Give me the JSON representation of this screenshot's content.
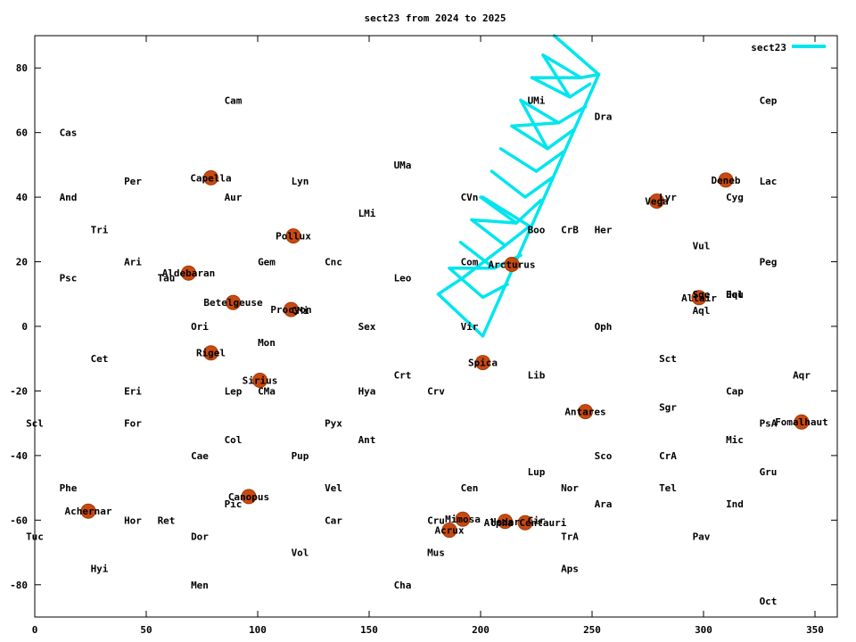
{
  "chart_data": {
    "type": "line",
    "title": "sect23 from 2024 to 2025",
    "xlabel": "",
    "ylabel": "",
    "xlim": [
      0,
      360
    ],
    "ylim": [
      -90,
      90
    ],
    "grid": false,
    "legend": "top-right",
    "xticks": [
      0,
      50,
      100,
      150,
      200,
      250,
      300,
      350
    ],
    "yticks": [
      -80,
      -60,
      -40,
      -20,
      0,
      20,
      40,
      60,
      80
    ],
    "series": [
      {
        "name": "sect23",
        "color": "#00e5ee",
        "segments": [
          [
            [
              181,
              10
            ],
            [
              201,
              -3
            ],
            [
              253,
              78
            ],
            [
              233,
              90
            ]
          ],
          [
            [
              181,
              10
            ],
            [
              192,
              15
            ]
          ],
          [
            [
              186,
              18
            ],
            [
              201,
              9
            ],
            [
              212,
              13
            ]
          ],
          [
            [
              191,
              26
            ],
            [
              206,
              18
            ],
            [
              218,
              22
            ]
          ],
          [
            [
              196,
              33
            ],
            [
              211,
              25
            ],
            [
              222,
              31
            ]
          ],
          [
            [
              200,
              40
            ],
            [
              216,
              32
            ],
            [
              227,
              39
            ]
          ],
          [
            [
              205,
              48
            ],
            [
              220,
              40
            ],
            [
              232,
              46
            ]
          ],
          [
            [
              209,
              55
            ],
            [
              225,
              48
            ],
            [
              237,
              54
            ]
          ],
          [
            [
              214,
              62
            ],
            [
              230,
              55
            ],
            [
              242,
              61
            ]
          ],
          [
            [
              218,
              70
            ],
            [
              235,
              63
            ],
            [
              247,
              68
            ]
          ],
          [
            [
              223,
              77
            ],
            [
              240,
              71
            ],
            [
              249,
              75
            ]
          ],
          [
            [
              228,
              84
            ],
            [
              245,
              77
            ],
            [
              253,
              78
            ]
          ],
          [
            [
              192,
              15
            ],
            [
              211,
              25
            ]
          ],
          [
            [
              186,
              18
            ],
            [
              206,
              18
            ]
          ],
          [
            [
              201,
              40
            ],
            [
              222,
              31
            ]
          ],
          [
            [
              196,
              33
            ],
            [
              216,
              32
            ]
          ],
          [
            [
              214,
              62
            ],
            [
              235,
              63
            ]
          ],
          [
            [
              218,
              70
            ],
            [
              230,
              55
            ]
          ],
          [
            [
              223,
              77
            ],
            [
              245,
              77
            ]
          ],
          [
            [
              228,
              84
            ],
            [
              240,
              71
            ]
          ]
        ]
      }
    ],
    "stars": [
      {
        "name": "Capella",
        "x": 79,
        "y": 46
      },
      {
        "name": "Pollux",
        "x": 116,
        "y": 28
      },
      {
        "name": "Aldebaran",
        "x": 69,
        "y": 16.5
      },
      {
        "name": "Betelgeuse",
        "x": 89,
        "y": 7.4
      },
      {
        "name": "Procyon",
        "x": 115,
        "y": 5.2
      },
      {
        "name": "Rigel",
        "x": 79,
        "y": -8.2
      },
      {
        "name": "Sirius",
        "x": 101,
        "y": -16.7
      },
      {
        "name": "Canopus",
        "x": 96,
        "y": -52.7
      },
      {
        "name": "Achernar",
        "x": 24,
        "y": -57.2
      },
      {
        "name": "Arcturus",
        "x": 214,
        "y": 19.2
      },
      {
        "name": "Spica",
        "x": 201,
        "y": -11.2
      },
      {
        "name": "Mimosa",
        "x": 192,
        "y": -59.7
      },
      {
        "name": "Acrux",
        "x": 186,
        "y": -63.1
      },
      {
        "name": "Hadar",
        "x": 211,
        "y": -60.4
      },
      {
        "name": "Alpha Centauri",
        "x": 220,
        "y": -60.8
      },
      {
        "name": "Antares",
        "x": 247,
        "y": -26.4
      },
      {
        "name": "Vega",
        "x": 279,
        "y": 38.8
      },
      {
        "name": "Deneb",
        "x": 310,
        "y": 45.3
      },
      {
        "name": "Altair",
        "x": 298,
        "y": 8.9
      },
      {
        "name": "Fomalhaut",
        "x": 344,
        "y": -29.6
      }
    ],
    "constellations": [
      {
        "name": "Cam",
        "x": 89,
        "y": 70
      },
      {
        "name": "Cas",
        "x": 15,
        "y": 60
      },
      {
        "name": "UMa",
        "x": 165,
        "y": 50
      },
      {
        "name": "UMi",
        "x": 225,
        "y": 70
      },
      {
        "name": "Dra",
        "x": 255,
        "y": 65
      },
      {
        "name": "Cep",
        "x": 329,
        "y": 70
      },
      {
        "name": "Per",
        "x": 44,
        "y": 45
      },
      {
        "name": "Lyn",
        "x": 119,
        "y": 45
      },
      {
        "name": "Lac",
        "x": 329,
        "y": 45
      },
      {
        "name": "And",
        "x": 15,
        "y": 40
      },
      {
        "name": "Aur",
        "x": 89,
        "y": 40
      },
      {
        "name": "CVn",
        "x": 195,
        "y": 40
      },
      {
        "name": "Lyr",
        "x": 284,
        "y": 40
      },
      {
        "name": "Cyg",
        "x": 314,
        "y": 40
      },
      {
        "name": "LMi",
        "x": 149,
        "y": 35
      },
      {
        "name": "Tri",
        "x": 29,
        "y": 30
      },
      {
        "name": "Boo",
        "x": 225,
        "y": 30
      },
      {
        "name": "CrB",
        "x": 240,
        "y": 30
      },
      {
        "name": "Her",
        "x": 255,
        "y": 30
      },
      {
        "name": "Vul",
        "x": 299,
        "y": 25
      },
      {
        "name": "Ari",
        "x": 44,
        "y": 20
      },
      {
        "name": "Gem",
        "x": 104,
        "y": 20
      },
      {
        "name": "Cnc",
        "x": 134,
        "y": 20
      },
      {
        "name": "Com",
        "x": 195,
        "y": 20
      },
      {
        "name": "Peg",
        "x": 329,
        "y": 20
      },
      {
        "name": "Psc",
        "x": 15,
        "y": 15
      },
      {
        "name": "Tau",
        "x": 59,
        "y": 15
      },
      {
        "name": "Leo",
        "x": 165,
        "y": 15
      },
      {
        "name": "Sge",
        "x": 299,
        "y": 10
      },
      {
        "name": "Equ",
        "x": 314,
        "y": 10
      },
      {
        "name": "Del",
        "x": 314,
        "y": 10
      },
      {
        "name": "CMi",
        "x": 119,
        "y": 5
      },
      {
        "name": "Aql",
        "x": 299,
        "y": 5
      },
      {
        "name": "Ori",
        "x": 74,
        "y": 0
      },
      {
        "name": "Sex",
        "x": 149,
        "y": 0
      },
      {
        "name": "Vir",
        "x": 195,
        "y": 0
      },
      {
        "name": "Oph",
        "x": 255,
        "y": 0
      },
      {
        "name": "Mon",
        "x": 104,
        "y": -5
      },
      {
        "name": "Cet",
        "x": 29,
        "y": -10
      },
      {
        "name": "Sct",
        "x": 284,
        "y": -10
      },
      {
        "name": "Crt",
        "x": 165,
        "y": -15
      },
      {
        "name": "Lib",
        "x": 225,
        "y": -15
      },
      {
        "name": "Aqr",
        "x": 344,
        "y": -15
      },
      {
        "name": "Eri",
        "x": 44,
        "y": -20
      },
      {
        "name": "Lep",
        "x": 89,
        "y": -20
      },
      {
        "name": "CMa",
        "x": 104,
        "y": -20
      },
      {
        "name": "Hya",
        "x": 149,
        "y": -20
      },
      {
        "name": "Crv",
        "x": 180,
        "y": -20
      },
      {
        "name": "Cap",
        "x": 314,
        "y": -20
      },
      {
        "name": "Sgr",
        "x": 284,
        "y": -25
      },
      {
        "name": "Scl",
        "x": 0,
        "y": -30
      },
      {
        "name": "For",
        "x": 44,
        "y": -30
      },
      {
        "name": "Pyx",
        "x": 134,
        "y": -30
      },
      {
        "name": "PsA",
        "x": 329,
        "y": -30
      },
      {
        "name": "Col",
        "x": 89,
        "y": -35
      },
      {
        "name": "Ant",
        "x": 149,
        "y": -35
      },
      {
        "name": "Mic",
        "x": 314,
        "y": -35
      },
      {
        "name": "Cae",
        "x": 74,
        "y": -40
      },
      {
        "name": "Pup",
        "x": 119,
        "y": -40
      },
      {
        "name": "Sco",
        "x": 255,
        "y": -40
      },
      {
        "name": "CrA",
        "x": 284,
        "y": -40
      },
      {
        "name": "Lup",
        "x": 225,
        "y": -45
      },
      {
        "name": "Gru",
        "x": 329,
        "y": -45
      },
      {
        "name": "Phe",
        "x": 15,
        "y": -50
      },
      {
        "name": "Vel",
        "x": 134,
        "y": -50
      },
      {
        "name": "Cen",
        "x": 195,
        "y": -50
      },
      {
        "name": "Nor",
        "x": 240,
        "y": -50
      },
      {
        "name": "Tel",
        "x": 284,
        "y": -50
      },
      {
        "name": "Pic",
        "x": 89,
        "y": -55
      },
      {
        "name": "Ara",
        "x": 255,
        "y": -55
      },
      {
        "name": "Ind",
        "x": 314,
        "y": -55
      },
      {
        "name": "Hor",
        "x": 44,
        "y": -60
      },
      {
        "name": "Ret",
        "x": 59,
        "y": -60
      },
      {
        "name": "Car",
        "x": 134,
        "y": -60
      },
      {
        "name": "Cru",
        "x": 180,
        "y": -60
      },
      {
        "name": "Cir",
        "x": 225,
        "y": -60
      },
      {
        "name": "Tuc",
        "x": 0,
        "y": -65
      },
      {
        "name": "Dor",
        "x": 74,
        "y": -65
      },
      {
        "name": "TrA",
        "x": 240,
        "y": -65
      },
      {
        "name": "Pav",
        "x": 299,
        "y": -65
      },
      {
        "name": "Vol",
        "x": 119,
        "y": -70
      },
      {
        "name": "Mus",
        "x": 180,
        "y": -70
      },
      {
        "name": "Hyi",
        "x": 29,
        "y": -75
      },
      {
        "name": "Aps",
        "x": 240,
        "y": -75
      },
      {
        "name": "Men",
        "x": 74,
        "y": -80
      },
      {
        "name": "Cha",
        "x": 165,
        "y": -80
      },
      {
        "name": "Oct",
        "x": 329,
        "y": -85
      }
    ],
    "colors": {
      "star_fill": "#c84a10",
      "star_stroke": "#a33a08",
      "label_text": "#000000",
      "axis": "#000000"
    }
  }
}
